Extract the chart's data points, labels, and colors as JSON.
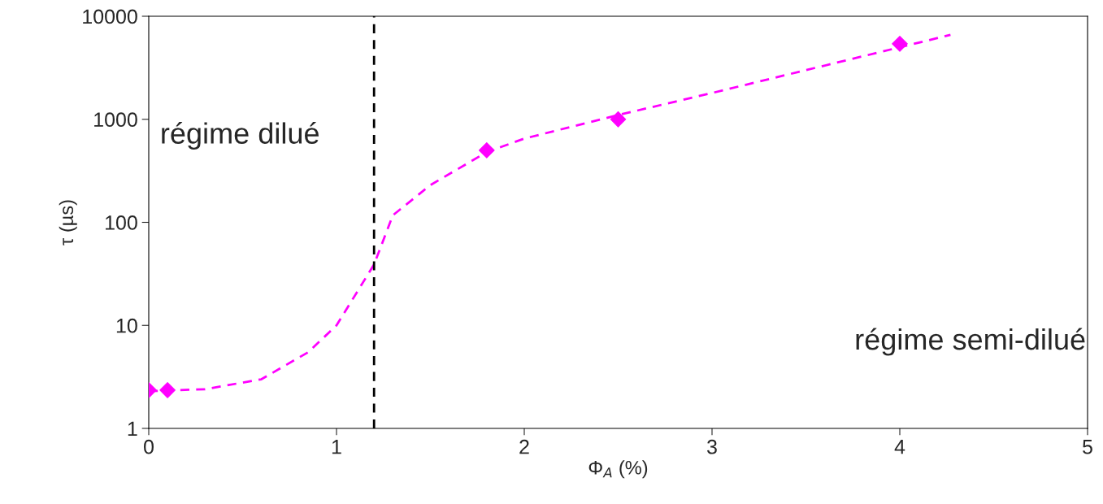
{
  "chart_data": {
    "type": "scatter",
    "xlabel": "Φ$_{A}$ (%)",
    "ylabel": "τ (µs)",
    "log": "y",
    "xlim": [
      0,
      5
    ],
    "xticks": [
      0,
      1,
      2,
      3,
      4,
      5
    ],
    "ylim": [
      1,
      10000
    ],
    "yticks": [
      1,
      10,
      100,
      1000,
      10000
    ],
    "grid": false,
    "legend": false,
    "series": [
      {
        "type": "line",
        "color": "#ff00ff",
        "line_style": "dashed",
        "marker": "none",
        "x": [
          0,
          0.3,
          0.6,
          0.85,
          1.0,
          1.2,
          1.3,
          1.5,
          1.8,
          2.0,
          2.5,
          3.0,
          3.5,
          4.0,
          4.27
        ],
        "values": [
          2.3,
          2.4,
          3,
          5.5,
          10,
          39,
          117,
          230,
          480,
          650,
          1100,
          1800,
          3000,
          5000,
          6600
        ]
      },
      {
        "color": "#ff00ff",
        "marker": "diamond",
        "x": [
          0,
          0.1,
          1.8,
          2.5,
          4
        ],
        "values": [
          2.35,
          2.35,
          500,
          1000,
          5400
        ]
      }
    ],
    "ref_lines": [
      {
        "axis": "x",
        "value": 1.2,
        "color": "#000000",
        "line_style": "dashed"
      }
    ],
    "annotations": [
      "régime dilué",
      "régime semi-dilué"
    ]
  }
}
